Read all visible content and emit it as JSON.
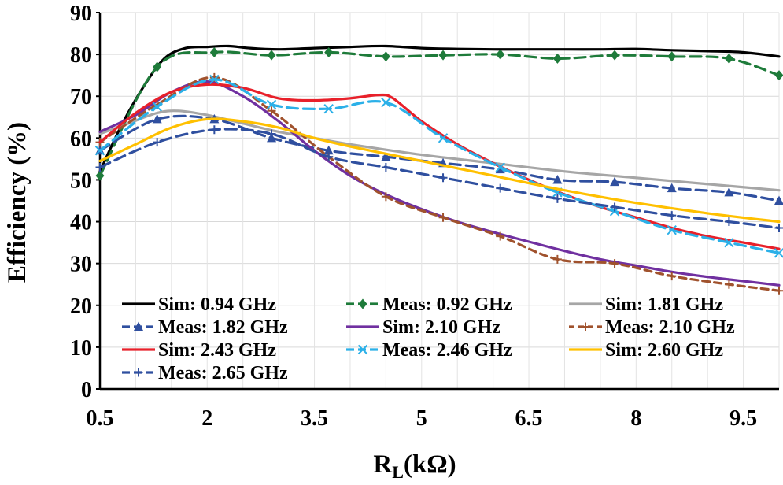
{
  "chart_data": {
    "type": "line",
    "title": "",
    "xlabel": "R",
    "xlabel_sub": "L",
    "xlabel_suffix": "(kΩ)",
    "ylabel": "Efficiency (%)",
    "xlim": [
      0.5,
      10.0
    ],
    "ylim": [
      0,
      90
    ],
    "xticks": [
      0.5,
      2,
      3.5,
      5,
      6.5,
      8,
      9.5
    ],
    "xtick_labels": [
      "0.5",
      "2",
      "3.5",
      "5",
      "6.5",
      "8",
      "9.5"
    ],
    "yticks": [
      0,
      10,
      20,
      30,
      40,
      50,
      60,
      70,
      80,
      90
    ],
    "ytick_labels": [
      "0",
      "10",
      "20",
      "30",
      "40",
      "50",
      "60",
      "70",
      "80",
      "90"
    ],
    "grid": true,
    "legend_position": "bottom-left",
    "series": [
      {
        "name": "Sim: 0.94 GHz",
        "color": "#000000",
        "dash": "solid",
        "marker": "none",
        "x": [
          0.5,
          0.8,
          1.1,
          1.4,
          1.7,
          2.0,
          2.3,
          2.6,
          3.0,
          3.5,
          4.0,
          4.5,
          5.0,
          5.5,
          6.0,
          6.5,
          7.0,
          7.5,
          8.0,
          8.5,
          9.0,
          9.5,
          10.0
        ],
        "y": [
          52,
          63,
          72,
          79,
          81.5,
          81.8,
          82,
          81.5,
          81.2,
          81.5,
          81.8,
          82,
          81.5,
          81.3,
          81.2,
          81.2,
          81.2,
          81.2,
          81.3,
          81,
          80.8,
          80.5,
          79.5
        ]
      },
      {
        "name": "Meas: 0.92 GHz",
        "color": "#1E7B3A",
        "dash": "longdash",
        "marker": "diamond",
        "x": [
          0.5,
          1.3,
          2.1,
          2.9,
          3.7,
          4.5,
          5.3,
          6.1,
          6.9,
          7.7,
          8.5,
          9.3,
          10.0
        ],
        "y": [
          51,
          77,
          80.5,
          79.8,
          80.5,
          79.5,
          79.8,
          80,
          79,
          79.8,
          79.5,
          79,
          75
        ]
      },
      {
        "name": "Sim: 1.81 GHz",
        "color": "#A6A6A6",
        "dash": "solid",
        "marker": "none",
        "x": [
          0.5,
          0.9,
          1.3,
          1.6,
          2.0,
          2.5,
          3.0,
          3.5,
          4.0,
          5.0,
          6.0,
          7.0,
          8.0,
          9.0,
          10.0
        ],
        "y": [
          61,
          63.5,
          66,
          66.5,
          65.5,
          63.5,
          61.5,
          60,
          58.5,
          56,
          54,
          52,
          50.5,
          49,
          47.5
        ]
      },
      {
        "name": "Meas: 1.82 GHz",
        "color": "#2F4F9F",
        "dash": "longdash",
        "marker": "triangle",
        "x": [
          0.5,
          1.3,
          2.1,
          2.9,
          3.7,
          4.5,
          5.3,
          6.1,
          6.9,
          7.7,
          8.5,
          9.3,
          10.0
        ],
        "y": [
          57,
          64.5,
          64.5,
          60,
          57,
          55.5,
          54,
          52.5,
          50,
          49.5,
          48,
          47,
          45
        ]
      },
      {
        "name": "Sim: 2.10 GHz",
        "color": "#7030A0",
        "dash": "solid",
        "marker": "none",
        "x": [
          0.5,
          1.0,
          1.5,
          2.0,
          2.5,
          3.0,
          3.5,
          4.0,
          4.5,
          5.0,
          5.5,
          6.0,
          6.5,
          7.0,
          7.5,
          8.0,
          8.5,
          9.0,
          9.5,
          10.0
        ],
        "y": [
          61.5,
          65.5,
          71,
          73.5,
          70,
          64,
          57,
          51,
          46.5,
          43,
          40,
          37.5,
          35.2,
          33,
          31,
          29.5,
          28,
          26.8,
          25.8,
          24.8
        ]
      },
      {
        "name": "Meas: 2.10 GHz",
        "color": "#A0522D",
        "dash": "dash",
        "marker": "plus",
        "x": [
          0.5,
          1.3,
          2.1,
          2.9,
          3.7,
          4.5,
          5.3,
          6.1,
          6.9,
          7.7,
          8.5,
          9.3,
          10.0
        ],
        "y": [
          59,
          68,
          74.5,
          66.5,
          55.5,
          46,
          41,
          36.5,
          31,
          30,
          27,
          25,
          23.5
        ]
      },
      {
        "name": "Sim: 2.43 GHz",
        "color": "#E8202A",
        "dash": "solid",
        "marker": "none",
        "x": [
          0.5,
          1.0,
          1.5,
          2.0,
          2.5,
          3.0,
          3.5,
          4.0,
          4.4,
          4.6,
          5.0,
          5.5,
          6.0,
          6.5,
          7.0,
          7.5,
          8.0,
          8.5,
          9.0,
          9.5,
          10.0
        ],
        "y": [
          59,
          66,
          71,
          72.8,
          72,
          69.5,
          69,
          69.5,
          70.3,
          69.5,
          64,
          58.5,
          54,
          50,
          46.5,
          43.5,
          41,
          38.5,
          36.5,
          35,
          33.5
        ]
      },
      {
        "name": "Meas: 2.46 GHz",
        "color": "#2BB0E8",
        "dash": "longdash",
        "marker": "x",
        "x": [
          0.5,
          1.3,
          2.1,
          2.9,
          3.7,
          4.5,
          5.3,
          6.1,
          6.9,
          7.7,
          8.5,
          9.3,
          10.0
        ],
        "y": [
          57,
          67.5,
          74,
          68,
          67,
          68.5,
          60,
          53,
          47,
          42.5,
          38,
          35,
          32.5
        ]
      },
      {
        "name": "Sim: 2.60 GHz",
        "color": "#FFC000",
        "dash": "solid",
        "marker": "none",
        "x": [
          0.5,
          1.0,
          1.5,
          2.0,
          2.5,
          3.0,
          3.5,
          4.0,
          5.0,
          6.0,
          7.0,
          8.0,
          9.0,
          10.0
        ],
        "y": [
          54.5,
          58.5,
          62.5,
          64.5,
          64,
          62.5,
          60,
          58,
          54.5,
          51,
          47.5,
          44.5,
          42,
          40
        ]
      },
      {
        "name": "Meas: 2.65 GHz",
        "color": "#2F4F9F",
        "dash": "longdash",
        "marker": "plus",
        "x": [
          0.5,
          1.3,
          2.1,
          2.9,
          3.7,
          4.5,
          5.3,
          6.1,
          6.9,
          7.7,
          8.5,
          9.3,
          10.0
        ],
        "y": [
          53,
          59,
          62,
          61,
          55.5,
          53,
          50.5,
          48,
          45.5,
          43.5,
          41.5,
          40,
          38.5
        ]
      }
    ]
  }
}
